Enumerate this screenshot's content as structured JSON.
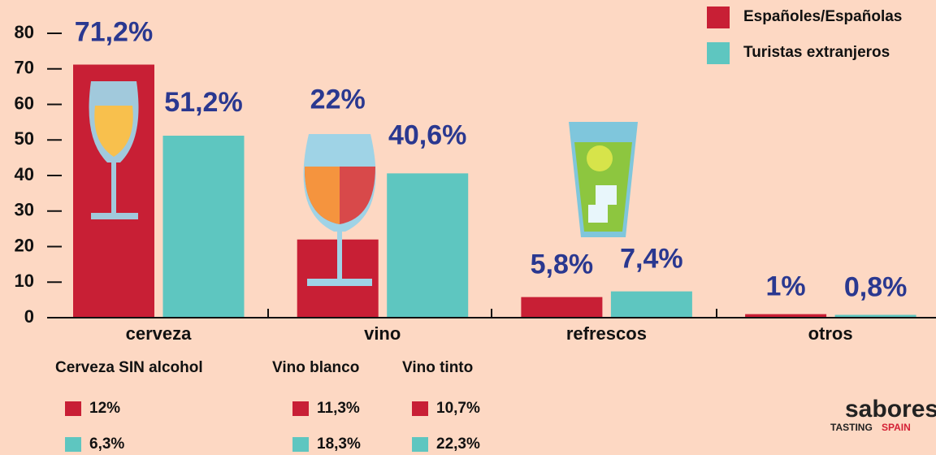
{
  "chart_data": {
    "type": "bar",
    "categories": [
      "cerveza",
      "vino",
      "refrescos",
      "otros"
    ],
    "series": [
      {
        "name": "Españoles/Españolas",
        "color": "#c81f35",
        "values": [
          71.2,
          22,
          5.8,
          1
        ],
        "value_labels": [
          "71,2%",
          "22%",
          "5,8%",
          "1%"
        ]
      },
      {
        "name": "Turistas extranjeros",
        "color": "#5ec6c0",
        "values": [
          51.2,
          40.6,
          7.4,
          0.8
        ],
        "value_labels": [
          "51,2%",
          "40,6%",
          "7,4%",
          "0,8%"
        ]
      }
    ],
    "ylim": [
      0,
      80
    ],
    "yticks": [
      0,
      10,
      20,
      30,
      40,
      50,
      60,
      70,
      80
    ],
    "legend": "top-right",
    "breakdowns": [
      {
        "label": "Cerveza SIN alcohol",
        "values": [
          12,
          6.3
        ],
        "value_labels": [
          "12%",
          "6,3%"
        ]
      },
      {
        "label": "Vino blanco",
        "values": [
          11.3,
          18.3
        ],
        "value_labels": [
          "11,3%",
          "18,3%"
        ]
      },
      {
        "label": "Vino tinto",
        "values": [
          10.7,
          22.3
        ],
        "value_labels": [
          "10,7%",
          "22,3%"
        ]
      }
    ]
  },
  "logo": {
    "name": "sabores",
    "tagline_1": "TASTING",
    "tagline_2": "SPAIN"
  }
}
